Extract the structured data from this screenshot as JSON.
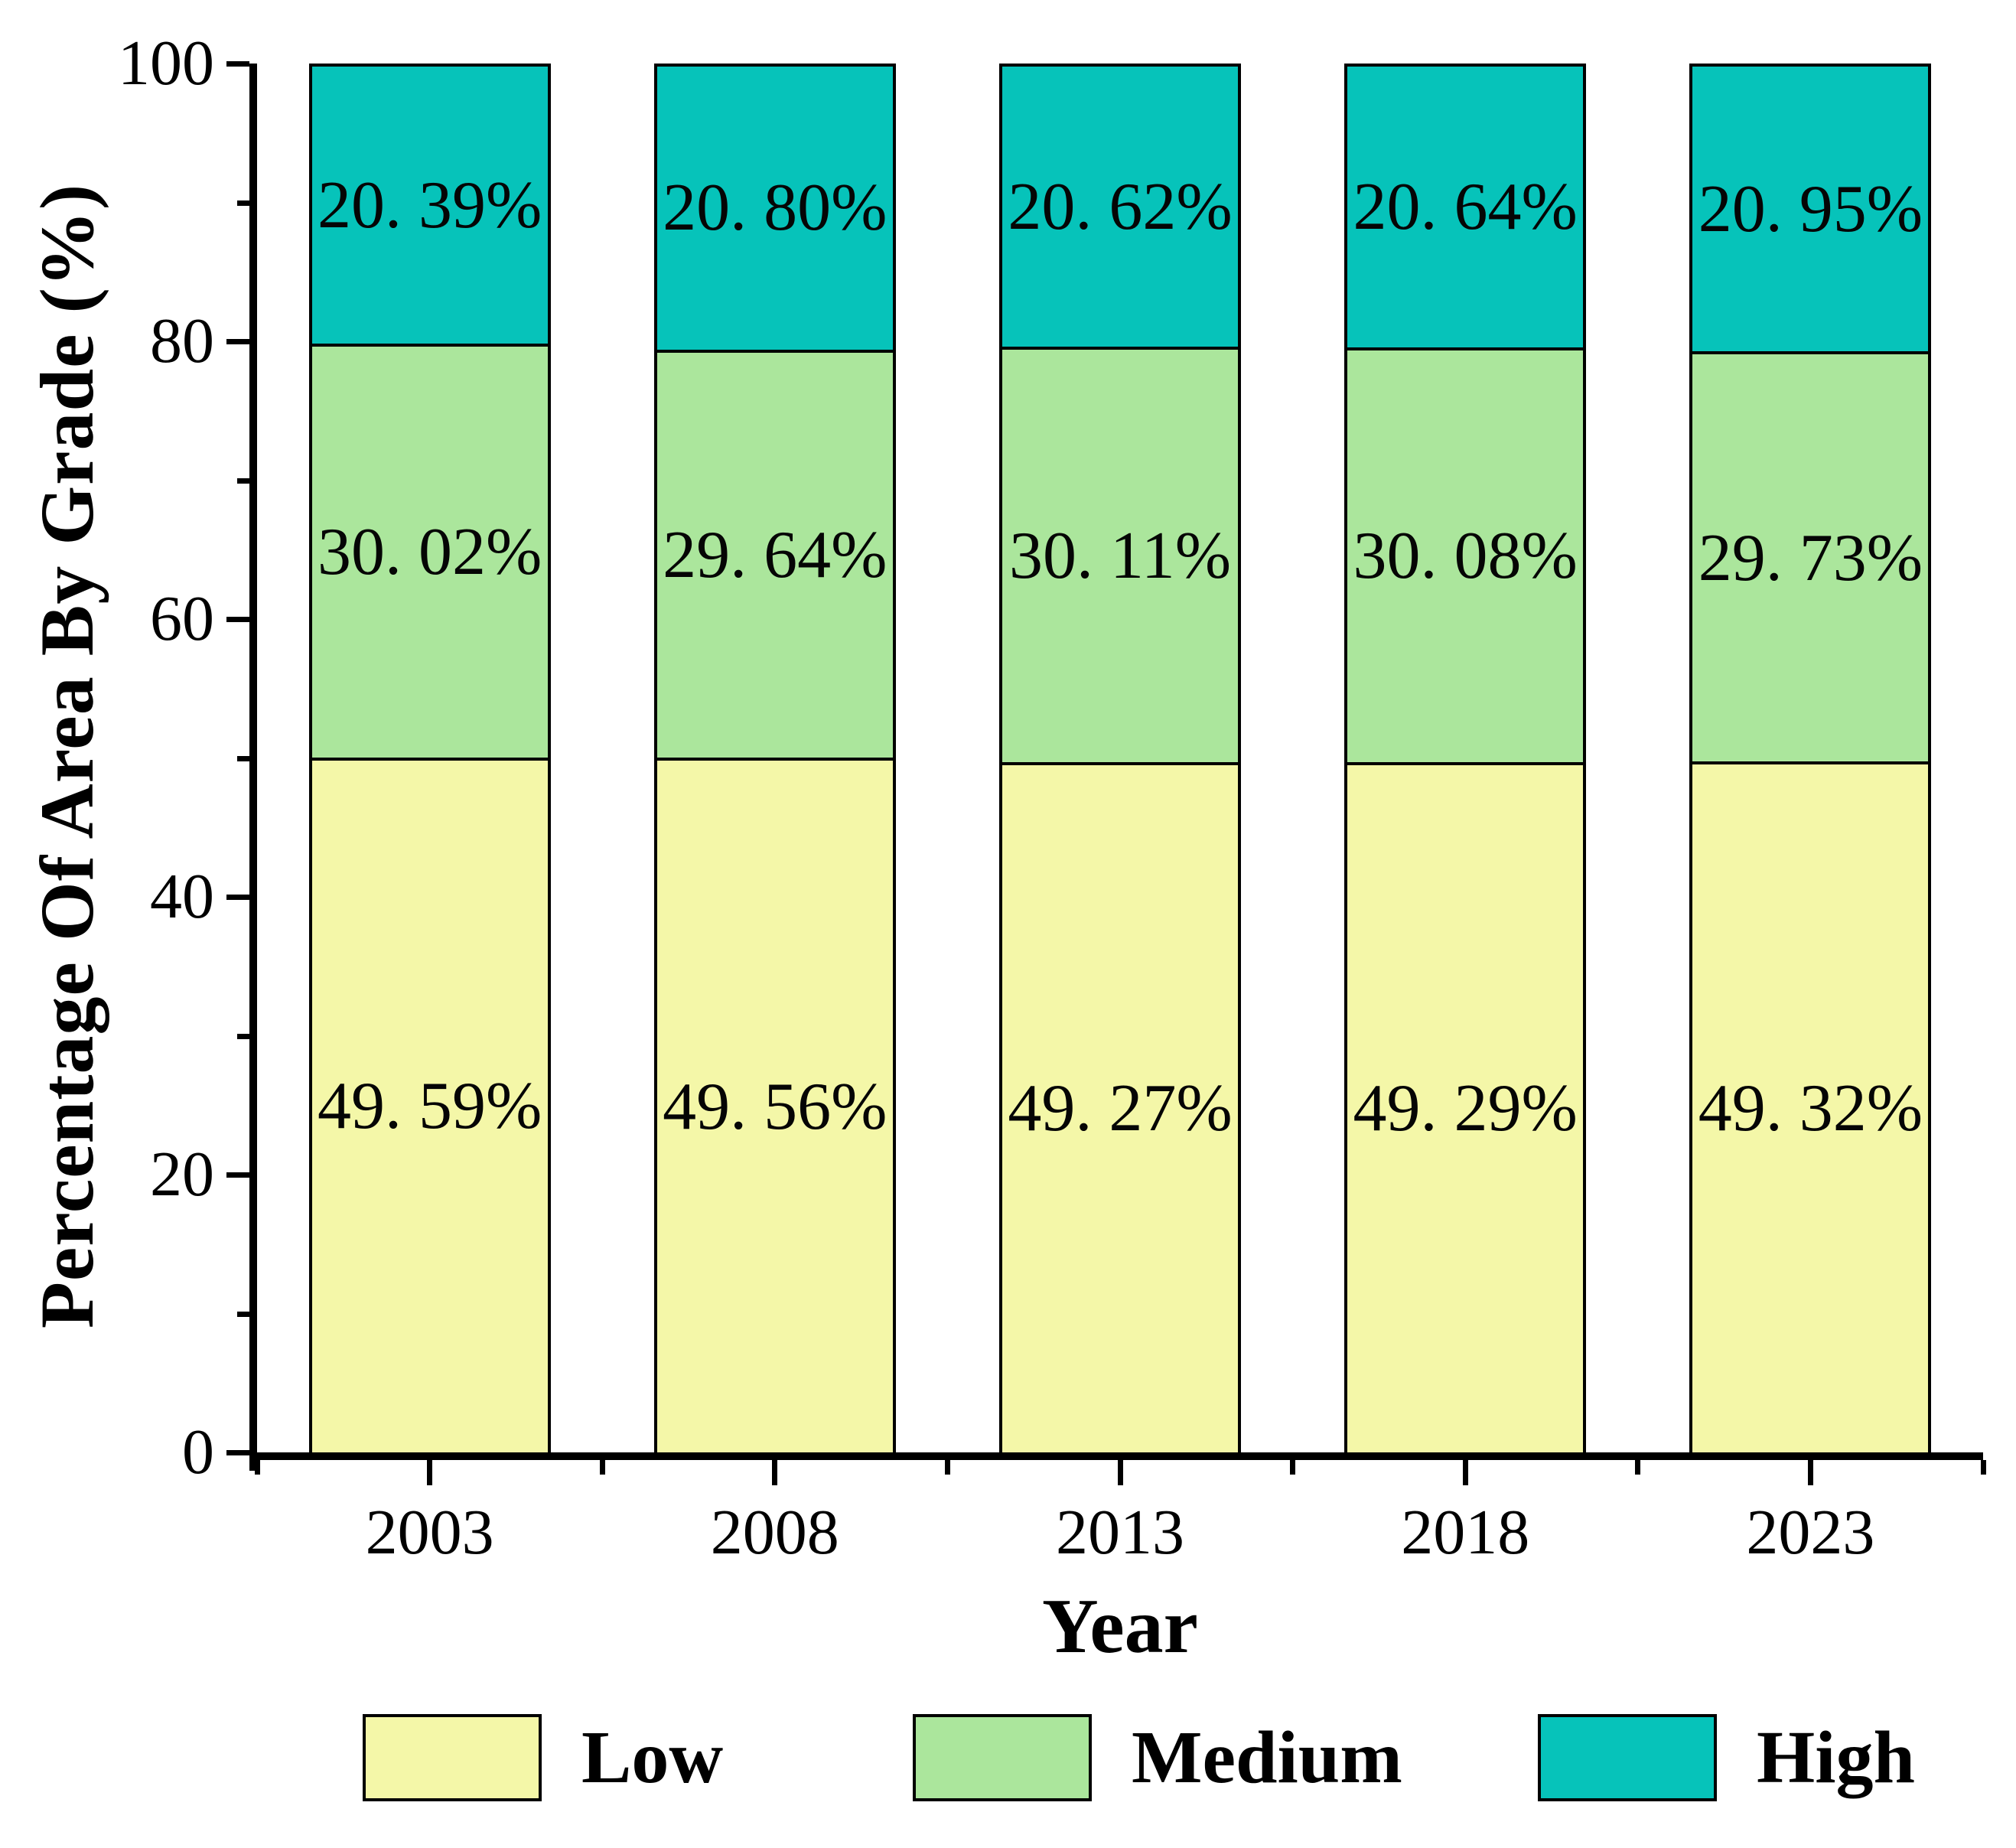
{
  "chart_data": {
    "type": "bar",
    "stacked": true,
    "orientation": "vertical",
    "title": "",
    "xlabel": "Year",
    "ylabel": "Percentage Of Area By Grade (%)",
    "categories": [
      "2003",
      "2008",
      "2013",
      "2018",
      "2023"
    ],
    "series": [
      {
        "name": "Low",
        "color": "#f4f7a8",
        "values": [
          49.59,
          49.56,
          49.27,
          49.29,
          49.32
        ],
        "bar_labels": [
          "49. 59%",
          "49. 56%",
          "49. 27%",
          "49. 29%",
          "49. 32%"
        ]
      },
      {
        "name": "Medium",
        "color": "#abe69c",
        "values": [
          30.02,
          29.64,
          30.11,
          30.08,
          29.73
        ],
        "bar_labels": [
          "30. 02%",
          "29. 64%",
          "30. 11%",
          "30. 08%",
          "29. 73%"
        ]
      },
      {
        "name": "High",
        "color": "#06c3ba",
        "values": [
          20.39,
          20.8,
          20.62,
          20.64,
          20.95
        ],
        "bar_labels": [
          "20. 39%",
          "20. 80%",
          "20. 62%",
          "20. 64%",
          "20. 95%"
        ]
      }
    ],
    "ylim": [
      0,
      100
    ],
    "y_major_ticks": [
      0,
      20,
      40,
      60,
      80,
      100
    ],
    "y_minor_ticks": [
      10,
      30,
      50,
      70,
      90
    ],
    "y_tick_labels": [
      "0",
      "20",
      "40",
      "60",
      "80",
      "100"
    ],
    "grid": false,
    "legend_position": "bottom",
    "bar_border_color": "#000000",
    "axis_color": "#000000"
  },
  "legend": {
    "items": [
      {
        "label": "Low",
        "color": "#f4f7a8"
      },
      {
        "label": "Medium",
        "color": "#abe69c"
      },
      {
        "label": "High",
        "color": "#06c3ba"
      }
    ]
  }
}
